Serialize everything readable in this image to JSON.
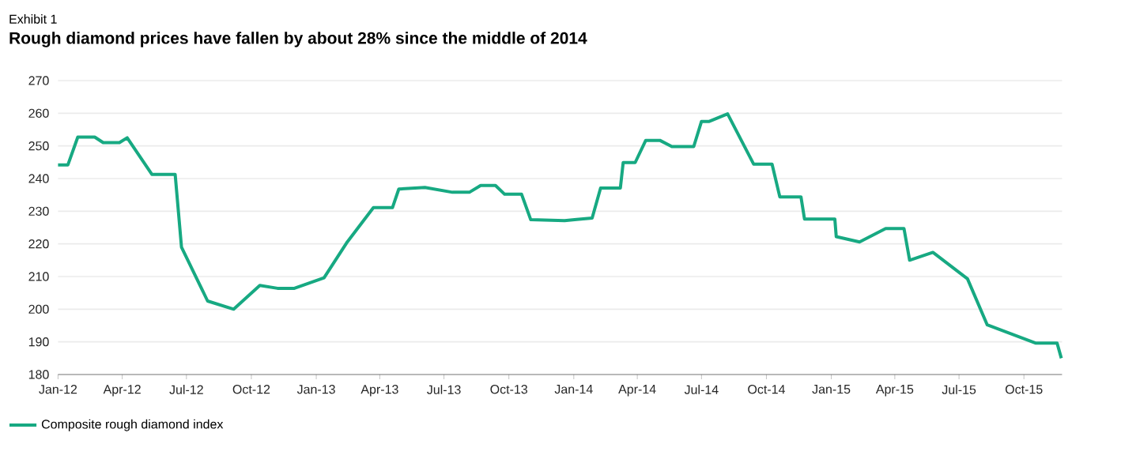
{
  "chart_data": {
    "type": "line",
    "subtitle": "Exhibit 1",
    "title": "Rough diamond prices have fallen by about 28% since the middle of 2014",
    "x": [
      "2012-01-01",
      "2012-01-15",
      "2012-01-29",
      "2012-02-22",
      "2012-03-05",
      "2012-03-28",
      "2012-04-08",
      "2012-05-13",
      "2012-06-15",
      "2012-06-24",
      "2012-07-31",
      "2012-09-06",
      "2012-10-13",
      "2012-11-07",
      "2012-12-01",
      "2013-01-12",
      "2013-02-14",
      "2013-03-23",
      "2013-04-19",
      "2013-04-28",
      "2013-06-04",
      "2013-07-13",
      "2013-08-06",
      "2013-08-22",
      "2013-09-12",
      "2013-09-25",
      "2013-10-19",
      "2013-11-01",
      "2013-12-19",
      "2014-01-05",
      "2014-01-27",
      "2014-02-08",
      "2014-03-08",
      "2014-03-12",
      "2014-03-29",
      "2014-04-13",
      "2014-05-03",
      "2014-05-20",
      "2014-06-20",
      "2014-07-01",
      "2014-07-12",
      "2014-08-07",
      "2014-09-13",
      "2014-10-09",
      "2014-10-20",
      "2014-11-19",
      "2014-11-24",
      "2015-01-06",
      "2015-01-08",
      "2015-02-10",
      "2015-03-19",
      "2015-04-14",
      "2015-04-22",
      "2015-05-25",
      "2015-07-13",
      "2015-08-10",
      "2015-10-18",
      "2015-11-17",
      "2015-11-23"
    ],
    "series": [
      {
        "name": "Composite rough diamond index",
        "color": "#17a982",
        "values": [
          244.2,
          244.2,
          252.7,
          252.7,
          251.0,
          251.0,
          252.5,
          241.3,
          241.3,
          219.0,
          202.5,
          200.0,
          207.3,
          206.4,
          206.4,
          209.6,
          220.6,
          231.1,
          231.1,
          236.8,
          237.3,
          235.8,
          235.8,
          237.9,
          237.9,
          235.2,
          235.2,
          227.4,
          227.1,
          227.5,
          227.9,
          237.1,
          237.1,
          244.9,
          244.9,
          251.7,
          251.7,
          249.8,
          249.8,
          257.5,
          257.5,
          259.8,
          244.4,
          244.4,
          234.4,
          234.4,
          227.6,
          227.6,
          222.2,
          220.6,
          224.7,
          224.7,
          215.0,
          217.4,
          209.3,
          195.2,
          189.6,
          189.6,
          185.0
        ]
      }
    ],
    "xlim": [
      "2012-01-01",
      "2015-11-24"
    ],
    "ylim": [
      180,
      270
    ],
    "xticks": [
      {
        "value": "2012-01-01",
        "label": "Jan-12"
      },
      {
        "value": "2012-04-01",
        "label": "Apr-12"
      },
      {
        "value": "2012-07-01",
        "label": "Jul-12"
      },
      {
        "value": "2012-10-01",
        "label": "Oct-12"
      },
      {
        "value": "2013-01-01",
        "label": "Jan-13"
      },
      {
        "value": "2013-04-01",
        "label": "Apr-13"
      },
      {
        "value": "2013-07-01",
        "label": "Jul-13"
      },
      {
        "value": "2013-10-01",
        "label": "Oct-13"
      },
      {
        "value": "2014-01-01",
        "label": "Jan-14"
      },
      {
        "value": "2014-04-01",
        "label": "Apr-14"
      },
      {
        "value": "2014-07-01",
        "label": "Jul-14"
      },
      {
        "value": "2014-10-01",
        "label": "Oct-14"
      },
      {
        "value": "2015-01-01",
        "label": "Jan-15"
      },
      {
        "value": "2015-04-01",
        "label": "Apr-15"
      },
      {
        "value": "2015-07-01",
        "label": "Jul-15"
      },
      {
        "value": "2015-10-01",
        "label": "Oct-15"
      }
    ],
    "yticks": [
      180,
      190,
      200,
      210,
      220,
      230,
      240,
      250,
      260,
      270
    ],
    "grid": "y",
    "legend": "bottom left",
    "marker": "none",
    "line_style": "solid"
  }
}
